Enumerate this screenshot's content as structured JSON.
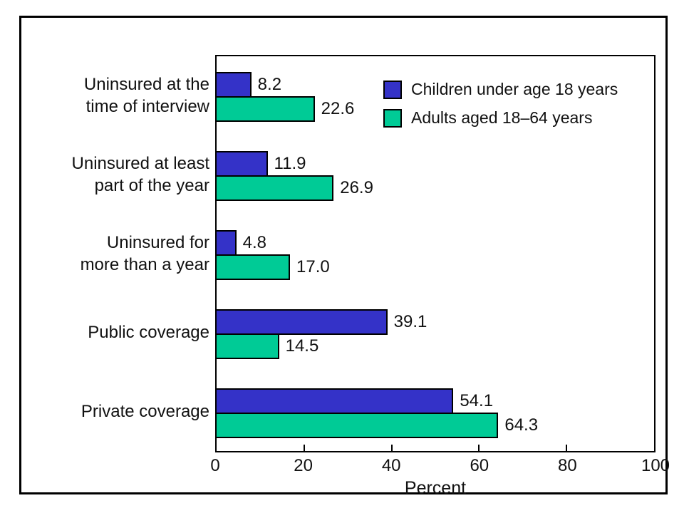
{
  "figure": {
    "background_color": "#ffffff",
    "frame_color": "#000000",
    "text_color": "#111111"
  },
  "chart_data": {
    "type": "bar",
    "orientation": "horizontal",
    "title": "",
    "xlabel": "Percent",
    "xlim": [
      0,
      100
    ],
    "xticks": [
      0,
      20,
      40,
      60,
      80,
      100
    ],
    "grid": false,
    "legend_position": "inside-top-right",
    "categories": [
      "Uninsured at the\ntime of interview",
      "Uninsured at least\npart of the year",
      "Uninsured for\nmore than a year",
      "Public coverage",
      "Private coverage"
    ],
    "series": [
      {
        "name": "Children under age 18 years",
        "color": "#3432c8",
        "values": [
          8.2,
          11.9,
          4.8,
          39.1,
          54.1
        ],
        "value_labels": [
          "8.2",
          "11.9",
          "4.8",
          "39.1",
          "54.1"
        ]
      },
      {
        "name": "Adults aged 18–64 years",
        "color": "#00cb96",
        "values": [
          22.6,
          26.9,
          17.0,
          14.5,
          64.3
        ],
        "value_labels": [
          "22.6",
          "26.9",
          "17.0",
          "14.5",
          "64.3"
        ]
      }
    ]
  }
}
